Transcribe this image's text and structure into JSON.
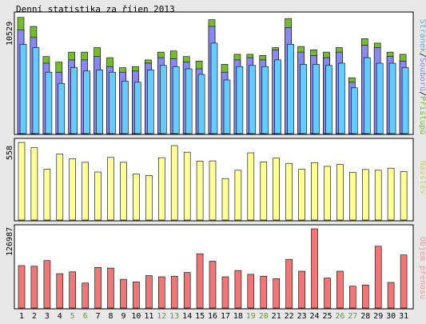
{
  "title": "Denní statistika za říjen 2013",
  "colors": {
    "background": "#e8e8e8",
    "panel": "#ffffff",
    "pages": "#66ccff",
    "files": "#8888ee",
    "hits": "#77bb33",
    "visits": "#ffff99",
    "traffic": "#ee7777",
    "weekday_label": "#000000",
    "weekend_label": "#669933",
    "axis_label_pages": "#66aacc",
    "axis_label_hits": "#77bb33",
    "axis_label_visits": "#cccc66",
    "axis_label_traffic": "#ee9999"
  },
  "legend": {
    "pages": "Stránek",
    "separator": "/",
    "files": "Souborů",
    "hits": "Přístupů",
    "visits": "Návštěv",
    "traffic": "Objem přenosu"
  },
  "chart_data": {
    "type": "bar",
    "categories": [
      "1",
      "2",
      "3",
      "4",
      "5",
      "6",
      "7",
      "8",
      "9",
      "10",
      "11",
      "12",
      "13",
      "14",
      "15",
      "16",
      "17",
      "18",
      "19",
      "20",
      "21",
      "22",
      "23",
      "24",
      "25",
      "26",
      "27",
      "28",
      "29",
      "30",
      "31"
    ],
    "weekend_days": [
      "5",
      "6",
      "12",
      "13",
      "19",
      "20",
      "26",
      "27"
    ],
    "panels": [
      {
        "id": "hits",
        "ymax_label": "10529",
        "ylim": [
          0,
          10529
        ],
        "series": [
          {
            "name": "Přístupů",
            "values": [
              10400,
              9600,
              6900,
              6400,
              7300,
              7300,
              7700,
              6800,
              5900,
              6000,
              6600,
              7300,
              7400,
              6900,
              6500,
              10200,
              6200,
              7100,
              7100,
              7000,
              7700,
              10300,
              7800,
              7500,
              7300,
              7700,
              5000,
              8500,
              8100,
              7300,
              7100
            ]
          },
          {
            "name": "Souborů",
            "values": [
              9300,
              8600,
              6300,
              5500,
              6600,
              6600,
              6900,
              6000,
              5500,
              5600,
              6300,
              6800,
              6700,
              6400,
              5800,
              9600,
              5500,
              6600,
              6800,
              6600,
              7500,
              9500,
              7300,
              7000,
              6800,
              7300,
              4600,
              7900,
              7700,
              6900,
              6500
            ]
          },
          {
            "name": "Stránek",
            "values": [
              8000,
              7700,
              5500,
              4500,
              5900,
              5600,
              5700,
              5500,
              4700,
              4600,
              5700,
              6100,
              6000,
              5800,
              5300,
              8100,
              4800,
              6000,
              6100,
              6000,
              6600,
              8000,
              6200,
              6200,
              6100,
              6300,
              4100,
              6800,
              6300,
              6300,
              5900
            ]
          }
        ]
      },
      {
        "id": "visits",
        "ymax_label": "558",
        "ylim": [
          0,
          558
        ],
        "series": [
          {
            "name": "Návštěv",
            "values": [
              558,
              520,
              365,
              475,
              440,
              415,
              345,
              450,
              415,
              330,
              320,
              448,
              535,
              488,
              424,
              425,
              298,
              358,
              483,
              418,
              445,
              407,
              365,
              413,
              386,
              400,
              342,
              363,
              358,
              373,
              348
            ]
          }
        ]
      },
      {
        "id": "traffic",
        "ymax_label": "126987",
        "ylim": [
          0,
          126987
        ],
        "series": [
          {
            "name": "Objem přenosu",
            "values": [
              68000,
              67000,
              76000,
              55000,
              58000,
              40000,
              65000,
              64000,
              46000,
              42000,
              52000,
              50000,
              51000,
              57000,
              87000,
              75000,
              50000,
              60000,
              54000,
              51000,
              47000,
              78000,
              59000,
              126987,
              48000,
              59000,
              35000,
              37000,
              99000,
              41000,
              85000
            ]
          }
        ]
      }
    ]
  }
}
